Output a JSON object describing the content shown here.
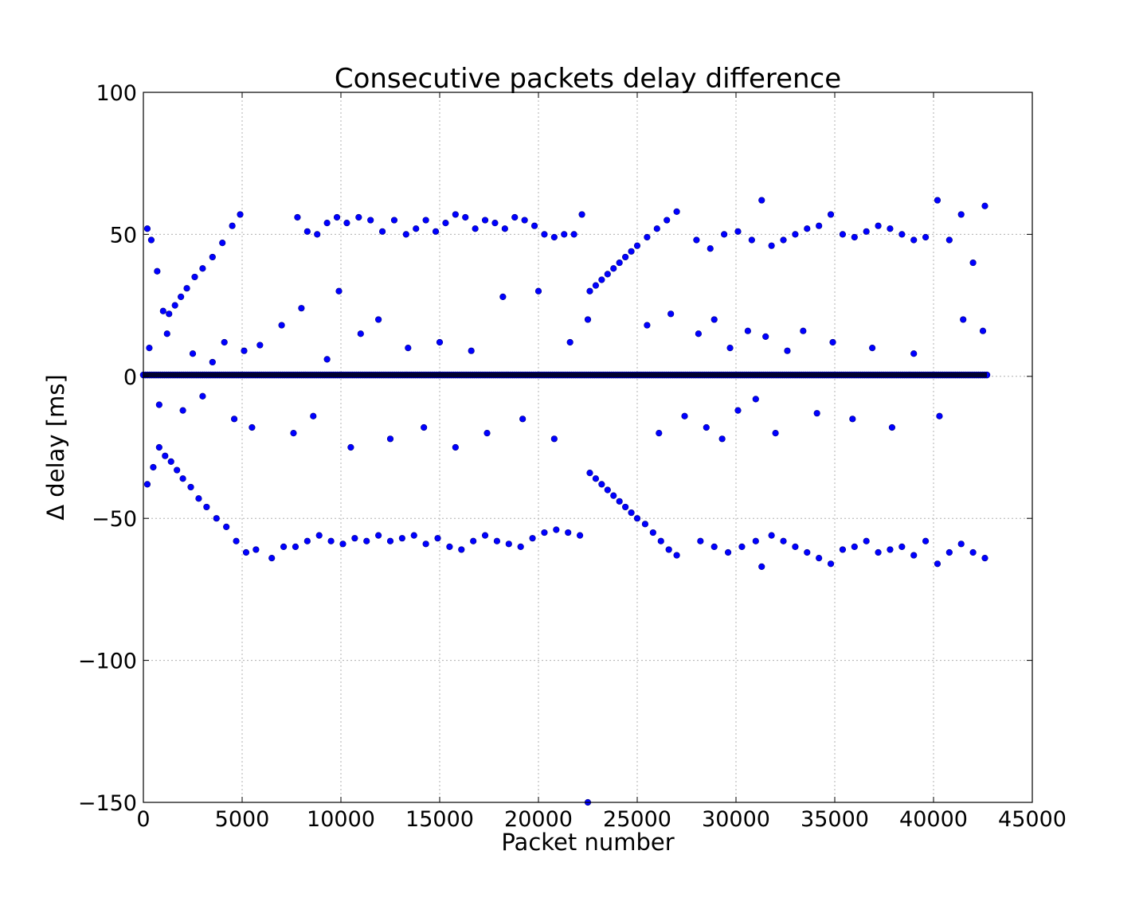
{
  "chart_data": {
    "type": "scatter",
    "title": "Consecutive packets delay difference",
    "xlabel": "Packet number",
    "ylabel": "Δ delay [ms]",
    "xlim": [
      0,
      45000
    ],
    "ylim": [
      -150,
      100
    ],
    "xticks": [
      0,
      5000,
      10000,
      15000,
      20000,
      25000,
      30000,
      35000,
      40000,
      45000
    ],
    "xtick_labels": [
      "0",
      "5000",
      "10000",
      "15000",
      "20000",
      "25000",
      "30000",
      "35000",
      "40000",
      "45000"
    ],
    "yticks": [
      100,
      50,
      0,
      -50,
      -100,
      -150
    ],
    "ytick_labels": [
      "100",
      "50",
      "0",
      "−50",
      "−100",
      "−150"
    ],
    "grid": true,
    "marker_color": "#0000ff",
    "series": [
      {
        "name": "baseline",
        "x_range": [
          0,
          42700
        ],
        "value": 0.5
      },
      {
        "name": "upper arc 1",
        "x": [
          200,
          400,
          700,
          1000,
          1300,
          1600,
          1900,
          2200,
          2600,
          3000,
          3500,
          4000,
          4500,
          4900
        ],
        "y": [
          52,
          48,
          37,
          23,
          22,
          25,
          28,
          31,
          35,
          38,
          42,
          47,
          53,
          57
        ]
      },
      {
        "name": "upper band 1",
        "x": [
          7800,
          8300,
          8800,
          9300,
          9800,
          10300,
          10900,
          11500,
          12100,
          12700,
          13300,
          13800,
          14300,
          14800,
          15300,
          15800,
          16300,
          16800,
          17300,
          17800,
          18300,
          18800,
          19300,
          19800,
          20300,
          20800,
          21300,
          21800,
          22200
        ],
        "y": [
          56,
          51,
          50,
          54,
          56,
          54,
          56,
          55,
          51,
          55,
          50,
          52,
          55,
          51,
          54,
          57,
          56,
          52,
          55,
          54,
          52,
          56,
          55,
          53,
          50,
          49,
          50,
          50,
          57
        ]
      },
      {
        "name": "upper arc 2",
        "x": [
          22600,
          22900,
          23200,
          23500,
          23800,
          24100,
          24400,
          24700,
          25000,
          25500,
          26000,
          26500,
          27000
        ],
        "y": [
          30,
          32,
          34,
          36,
          38,
          40,
          42,
          44,
          46,
          49,
          52,
          55,
          58
        ]
      },
      {
        "name": "upper band 2",
        "x": [
          28000,
          28700,
          29400,
          30100,
          30800,
          31300,
          31800,
          32400,
          33000,
          33600,
          34200,
          34800,
          35400,
          36000,
          36600,
          37200,
          37800,
          38400,
          39000,
          39600,
          40200,
          40800,
          41400,
          42000,
          42600
        ],
        "y": [
          48,
          45,
          50,
          51,
          48,
          62,
          46,
          48,
          50,
          52,
          53,
          57,
          50,
          49,
          51,
          53,
          52,
          50,
          48,
          49,
          62,
          48,
          57,
          40,
          60
        ]
      },
      {
        "name": "lower arc 1",
        "x": [
          200,
          500,
          800,
          1100,
          1400,
          1700,
          2000,
          2400,
          2800,
          3200,
          3700,
          4200,
          4700,
          5200,
          5700
        ],
        "y": [
          -38,
          -32,
          -25,
          -28,
          -30,
          -33,
          -36,
          -39,
          -43,
          -46,
          -50,
          -53,
          -58,
          -62,
          -61
        ]
      },
      {
        "name": "lower band 1",
        "x": [
          6500,
          7100,
          7700,
          8300,
          8900,
          9500,
          10100,
          10700,
          11300,
          11900,
          12500,
          13100,
          13700,
          14300,
          14900,
          15500,
          16100,
          16700,
          17300,
          17900,
          18500,
          19100,
          19700,
          20300,
          20900,
          21500,
          22100
        ],
        "y": [
          -64,
          -60,
          -60,
          -58,
          -56,
          -58,
          -59,
          -57,
          -58,
          -56,
          -58,
          -57,
          -56,
          -59,
          -57,
          -60,
          -61,
          -58,
          -56,
          -58,
          -59,
          -60,
          -57,
          -55,
          -54,
          -55,
          -56
        ]
      },
      {
        "name": "lower arc 2",
        "x": [
          22600,
          22900,
          23200,
          23500,
          23800,
          24100,
          24400,
          24700,
          25000,
          25400,
          25800,
          26200,
          26600,
          27000
        ],
        "y": [
          -34,
          -36,
          -38,
          -40,
          -42,
          -44,
          -46,
          -48,
          -50,
          -52,
          -55,
          -58,
          -61,
          -63
        ]
      },
      {
        "name": "lower band 2",
        "x": [
          28200,
          28900,
          29600,
          30300,
          31000,
          31300,
          31800,
          32400,
          33000,
          33600,
          34200,
          34800,
          35400,
          36000,
          36600,
          37200,
          37800,
          38400,
          39000,
          39600,
          40200,
          40800,
          41400,
          42000,
          42600
        ],
        "y": [
          -58,
          -60,
          -62,
          -60,
          -58,
          -67,
          -56,
          -58,
          -60,
          -62,
          -64,
          -66,
          -61,
          -60,
          -58,
          -62,
          -61,
          -60,
          -63,
          -58,
          -66,
          -62,
          -59,
          -62,
          -64
        ]
      },
      {
        "name": "scatter near zero",
        "x": [
          300,
          800,
          1200,
          2000,
          2500,
          3000,
          3500,
          4100,
          4600,
          5100,
          5500,
          5900,
          7000,
          7600,
          8000,
          8600,
          9300,
          9900,
          10500,
          11000,
          11900,
          12500,
          13400,
          14200,
          15000,
          15800,
          16600,
          17400,
          18200,
          19200,
          20000,
          20800,
          21600,
          22500,
          25500,
          26100,
          26700,
          27400,
          28100,
          28500,
          28900,
          29300,
          29700,
          30100,
          30600,
          31000,
          31500,
          32000,
          32600,
          33400,
          34100,
          34900,
          35900,
          36900,
          37900,
          39000,
          40300,
          41500,
          42500
        ],
        "y": [
          10,
          -10,
          15,
          -12,
          8,
          -7,
          5,
          12,
          -15,
          9,
          -18,
          11,
          18,
          -20,
          24,
          -14,
          6,
          30,
          -25,
          15,
          20,
          -22,
          10,
          -18,
          12,
          -25,
          9,
          -20,
          28,
          -15,
          30,
          -22,
          12,
          20,
          18,
          -20,
          22,
          -14,
          15,
          -18,
          20,
          -22,
          10,
          -12,
          16,
          -8,
          14,
          -20,
          9,
          16,
          -13,
          12,
          -15,
          10,
          -18,
          8,
          -14,
          20,
          16
        ]
      },
      {
        "name": "outlier",
        "x": [
          22500
        ],
        "y": [
          -150
        ]
      }
    ]
  }
}
